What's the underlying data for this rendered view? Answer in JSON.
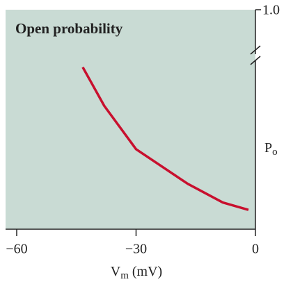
{
  "chart_data": {
    "type": "line",
    "title": "Open probability",
    "xlabel": [
      "V",
      "m",
      " (mV)"
    ],
    "ylabel": [
      "P",
      "o"
    ],
    "x": [
      -43.4,
      -38,
      -30,
      -17,
      -8.2,
      -1.75
    ],
    "series": [
      {
        "color": "#c8102e",
        "values": [
          0.243,
          0.185,
          0.12,
          0.068,
          0.04,
          0.029
        ]
      }
    ],
    "xlim": [
      -62.8,
      0
    ],
    "xticks": [
      {
        "value": -60,
        "label": "−60"
      },
      {
        "value": -30,
        "label": "−30"
      },
      0
    ],
    "ylim": [
      0,
      1.0
    ],
    "ybreak": [
      0.25,
      0.95
    ],
    "yticks": [
      {
        "value": 1.0,
        "label": "1.0"
      }
    ],
    "background": "#c9dbd4"
  }
}
